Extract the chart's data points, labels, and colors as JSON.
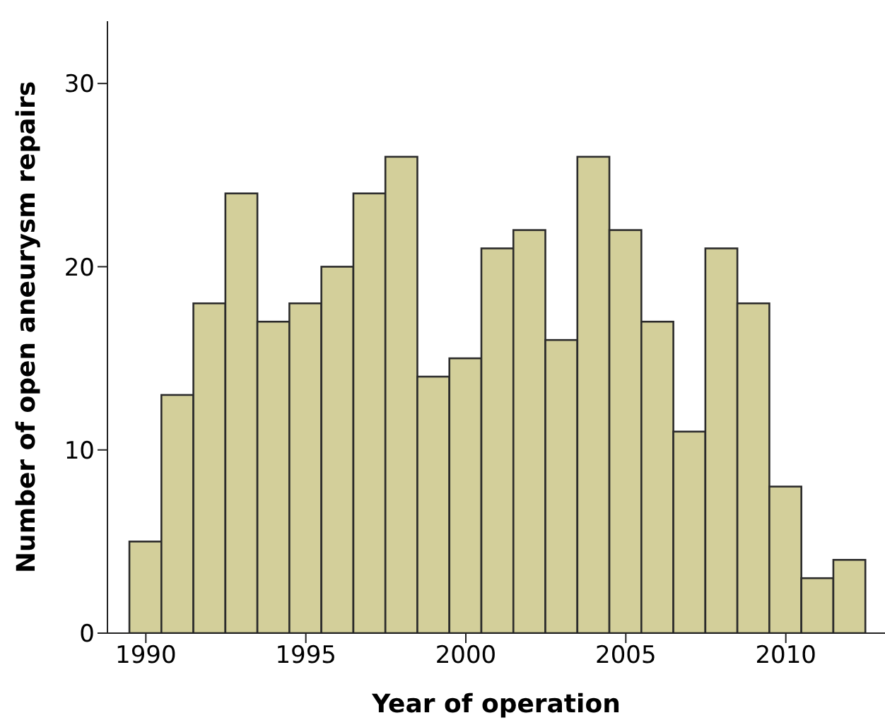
{
  "chart_data": {
    "type": "histogram",
    "xlabel": "Year of operation",
    "ylabel": "Number of open aneurysm repairs",
    "bins": [
      1989.5,
      1990.5,
      1991.5,
      1992.5,
      1993.5,
      1994.5,
      1995.5,
      1996.5,
      1997.5,
      1998.5,
      1999.5,
      2000.5,
      2001.5,
      2002.5,
      2003.5,
      2004.5,
      2005.5,
      2006.5,
      2007.5,
      2008.5,
      2009.5,
      2010.5,
      2011.5,
      2012.5
    ],
    "values": [
      5,
      13,
      18,
      24,
      17,
      18,
      20,
      24,
      26,
      14,
      15,
      21,
      22,
      16,
      26,
      22,
      17,
      11,
      21,
      18,
      8,
      3,
      4
    ],
    "color": "#d3cf9a",
    "xlim": [
      1988.8,
      2013.1
    ],
    "ylim": [
      0,
      33.4
    ],
    "xticks": [
      1990,
      1995,
      2000,
      2005,
      2010
    ],
    "yticks": [
      0,
      10,
      20,
      30
    ],
    "grid": false
  }
}
